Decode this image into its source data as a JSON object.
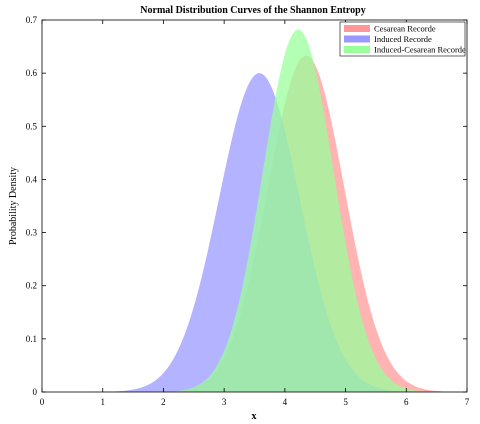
{
  "chart_data": {
    "type": "area",
    "title": "Normal Distribution Curves of the Shannon Entropy",
    "xlabel": "x",
    "ylabel": "Probability Density",
    "xlim": [
      0,
      7
    ],
    "ylim": [
      0,
      0.7
    ],
    "xticks": [
      "0",
      "1",
      "2",
      "3",
      "4",
      "5",
      "6",
      "7"
    ],
    "yticks": [
      "0",
      "0.1",
      "0.2",
      "0.3",
      "0.4",
      "0.5",
      "0.6",
      "0.7"
    ],
    "grid": false,
    "legend_position": "top-right",
    "series": [
      {
        "name": "Cesarean Recorde",
        "mean": 4.35,
        "std": 0.63,
        "peak": 0.633,
        "color": "#ff9999"
      },
      {
        "name": "Induced Recorde",
        "mean": 3.58,
        "std": 0.665,
        "peak": 0.6,
        "color": "#9999ff"
      },
      {
        "name": "Induced-Cesarean Recorde",
        "mean": 4.22,
        "std": 0.585,
        "peak": 0.682,
        "color": "#99ff99"
      }
    ]
  }
}
